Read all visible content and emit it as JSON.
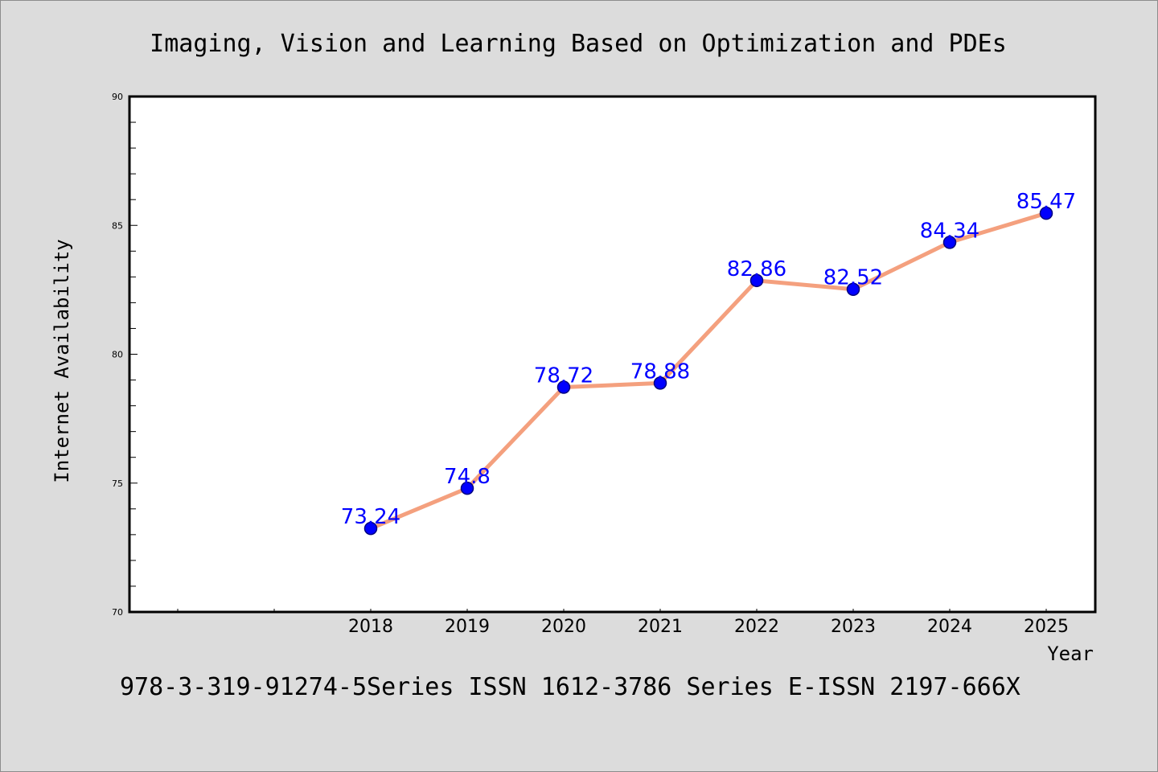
{
  "chart_data": {
    "type": "line",
    "title": "Imaging, Vision and Learning Based on Optimization and PDEs",
    "xlabel": "Year",
    "ylabel": "Internet Availability",
    "categories": [
      "2018",
      "2019",
      "2020",
      "2021",
      "2022",
      "2023",
      "2024",
      "2025"
    ],
    "values": [
      73.24,
      74.8,
      78.72,
      78.88,
      82.86,
      82.52,
      84.34,
      85.47
    ],
    "data_labels": [
      "73.24",
      "74.8",
      "78.72",
      "78.88",
      "82.86",
      "82.52",
      "84.34",
      "85.47"
    ],
    "ylim": [
      70,
      90
    ],
    "yticks": [
      70,
      75,
      80,
      85,
      90
    ],
    "ytick_labels": [
      "70",
      "75",
      "80",
      "85",
      "90"
    ],
    "grid": false,
    "legend": "none",
    "footer": "978-3-319-91274-5Series ISSN 1612-3786 Series E-ISSN 2197-666X",
    "colors": {
      "line": "#f4a07e",
      "marker": "#0000ff",
      "marker_edge": "#000080",
      "label": "#0000ff",
      "background": "#dcdcdc",
      "plot_background": "#ffffff"
    }
  }
}
